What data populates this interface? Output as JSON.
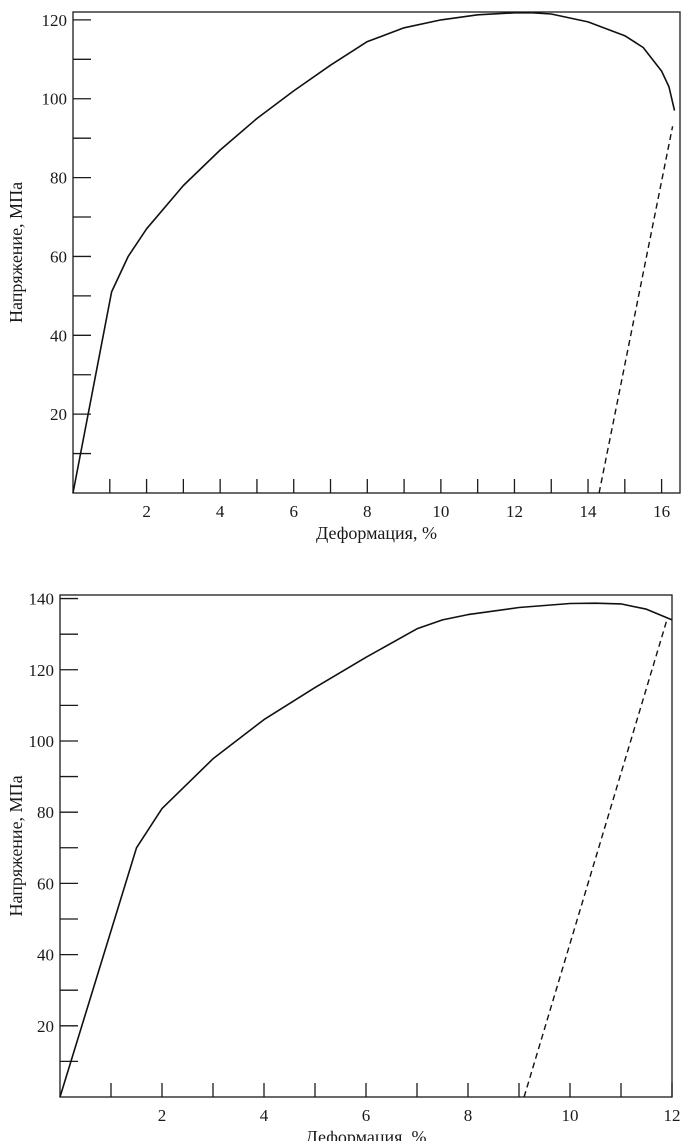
{
  "chart_data": [
    {
      "type": "line",
      "title": "",
      "xlabel": "Деформация, %",
      "ylabel": "Напряжение, МПа",
      "xlim": [
        0,
        16.5
      ],
      "ylim": [
        0,
        122
      ],
      "x_ticks": [
        2,
        4,
        6,
        8,
        10,
        12,
        14,
        16
      ],
      "x_minor_ticks": [
        1,
        3,
        5,
        7,
        9,
        11,
        13,
        15
      ],
      "y_ticks": [
        20,
        40,
        60,
        80,
        100,
        120
      ],
      "y_minor_ticks": [
        10,
        30,
        50,
        70,
        90,
        110
      ],
      "grid": false,
      "series": [
        {
          "style": "solid",
          "x": [
            0,
            1.05,
            1.5,
            2,
            3,
            4,
            5,
            6,
            7,
            8,
            9,
            10,
            11,
            12,
            12.5,
            13,
            14,
            15,
            15.5,
            16,
            16.2,
            16.35
          ],
          "y": [
            0,
            51,
            60,
            67,
            78,
            87,
            95,
            102,
            108.5,
            114.5,
            118,
            120,
            121.3,
            121.8,
            121.8,
            121.5,
            119.5,
            116,
            113,
            107,
            103,
            97
          ]
        },
        {
          "style": "dashed",
          "x": [
            14.3,
            16.3
          ],
          "y": [
            0,
            93
          ]
        }
      ]
    },
    {
      "type": "line",
      "title": "",
      "xlabel": "Деформация, %",
      "ylabel": "Напряжение, МПа",
      "xlim": [
        0,
        12
      ],
      "ylim": [
        0,
        141
      ],
      "x_ticks": [
        2,
        4,
        6,
        8,
        10,
        12
      ],
      "x_minor_ticks": [
        1,
        3,
        5,
        7,
        9,
        11
      ],
      "y_ticks": [
        20,
        40,
        60,
        80,
        100,
        120,
        140
      ],
      "y_minor_ticks": [
        10,
        30,
        50,
        70,
        90,
        110,
        130
      ],
      "grid": false,
      "series": [
        {
          "style": "solid",
          "x": [
            0,
            1.5,
            2,
            3,
            4,
            5,
            6,
            7,
            7.5,
            8,
            9,
            10,
            10.5,
            11,
            11.5,
            12
          ],
          "y": [
            0,
            70,
            81,
            95,
            106,
            115,
            123.5,
            131.5,
            134,
            135.5,
            137.5,
            138.6,
            138.7,
            138.5,
            137,
            134
          ]
        },
        {
          "style": "dashed",
          "x": [
            9.1,
            11.9
          ],
          "y": [
            0,
            134
          ]
        }
      ]
    }
  ]
}
